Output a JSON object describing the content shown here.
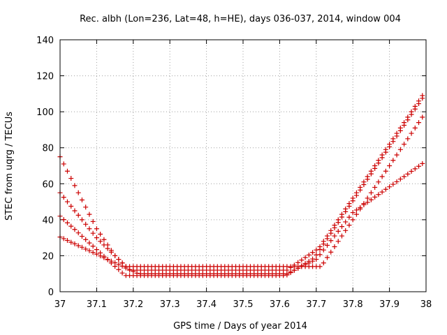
{
  "chart_data": {
    "type": "scatter",
    "title": "Rec. albh (Lon=236, Lat=48, h=HE), days 036-037, 2014, window 004",
    "xlabel": "GPS time / Days of year 2014",
    "ylabel": "STEC from uqrg / TECUs",
    "xlim": [
      37,
      38
    ],
    "ylim": [
      0,
      140
    ],
    "xticks": [
      "37",
      "37.1",
      "37.2",
      "37.3",
      "37.4",
      "37.5",
      "37.6",
      "37.7",
      "37.8",
      "37.9",
      "38"
    ],
    "yticks": [
      "0",
      "20",
      "40",
      "60",
      "80",
      "100",
      "120",
      "140"
    ],
    "grid": true,
    "marker": "plus",
    "color": "#cc0000",
    "series": [
      {
        "x": [
          37.0,
          37.01,
          37.02,
          37.03,
          37.04,
          37.05,
          37.06,
          37.07,
          37.08,
          37.09,
          37.1,
          37.11,
          37.12,
          37.13,
          37.14,
          37.15,
          37.16,
          37.17,
          37.18,
          37.19,
          37.2,
          37.21,
          37.22,
          37.23,
          37.24,
          37.25,
          37.26,
          37.27,
          37.28,
          37.29,
          37.3,
          37.31,
          37.32,
          37.33,
          37.34,
          37.35,
          37.36,
          37.37,
          37.38,
          37.39,
          37.4,
          37.41,
          37.42,
          37.43,
          37.44,
          37.45,
          37.46,
          37.47,
          37.48,
          37.49,
          37.5,
          37.51,
          37.52,
          37.53,
          37.54,
          37.55,
          37.56,
          37.57,
          37.58,
          37.59,
          37.6,
          37.61,
          37.62,
          37.63,
          37.64,
          37.65,
          37.66,
          37.67,
          37.68,
          37.69,
          37.7,
          37.71,
          37.72,
          37.73,
          37.74,
          37.75,
          37.76,
          37.77,
          37.78,
          37.79,
          37.8,
          37.81,
          37.82,
          37.83,
          37.84,
          37.85,
          37.86,
          37.87,
          37.88,
          37.89,
          37.9,
          37.91,
          37.92,
          37.93,
          37.94,
          37.95,
          37.96,
          37.97,
          37.98,
          37.99
        ],
        "y": [
          30.4,
          29.5,
          28.5,
          27.5,
          26.6,
          25.6,
          24.7,
          23.7,
          22.8,
          21.8,
          20.9,
          19.9,
          18.9,
          18.0,
          17.0,
          16.1,
          15.1,
          14.2,
          13.2,
          12.3,
          11.3,
          10.3,
          10.0,
          10.0,
          10.0,
          10.0,
          10.0,
          10.0,
          10.0,
          10.0,
          10.0,
          10.0,
          10.0,
          10.0,
          10.0,
          10.0,
          10.0,
          10.0,
          10.0,
          10.0,
          10.0,
          10.0,
          10.0,
          10.0,
          10.0,
          10.0,
          10.0,
          10.0,
          10.0,
          10.0,
          10.0,
          10.0,
          10.0,
          10.0,
          10.0,
          10.0,
          10.0,
          10.0,
          10.0,
          10.0,
          10.0,
          10.0,
          10.0,
          11.0,
          12.0,
          13.0,
          14.0,
          15.0,
          16.0,
          17.0,
          18.0,
          20.6,
          23.2,
          25.8,
          28.4,
          31.0,
          33.6,
          36.2,
          38.8,
          41.4,
          44.0,
          45.4,
          46.8,
          48.3,
          49.7,
          51.1,
          52.6,
          54.0,
          55.4,
          56.9,
          58.3,
          59.7,
          61.1,
          62.6,
          64.0,
          65.4,
          66.9,
          68.3,
          69.7,
          71.2
        ]
      },
      {
        "x": [
          37.0,
          37.01,
          37.02,
          37.03,
          37.04,
          37.05,
          37.06,
          37.07,
          37.08,
          37.09,
          37.1,
          37.11,
          37.12,
          37.13,
          37.14,
          37.15,
          37.16,
          37.17,
          37.18,
          37.19,
          37.2,
          37.21,
          37.22,
          37.23,
          37.24,
          37.25,
          37.26,
          37.27,
          37.28,
          37.29,
          37.3,
          37.31,
          37.32,
          37.33,
          37.34,
          37.35,
          37.36,
          37.37,
          37.38,
          37.39,
          37.4,
          37.41,
          37.42,
          37.43,
          37.44,
          37.45,
          37.46,
          37.47,
          37.48,
          37.49,
          37.5,
          37.51,
          37.52,
          37.53,
          37.54,
          37.55,
          37.56,
          37.57,
          37.58,
          37.59,
          37.6,
          37.61,
          37.62,
          37.63,
          37.64,
          37.65,
          37.66,
          37.67,
          37.68,
          37.69,
          37.7,
          37.71,
          37.72,
          37.73,
          37.74,
          37.75,
          37.76,
          37.77,
          37.78,
          37.79,
          37.8,
          37.81,
          37.82,
          37.83,
          37.84,
          37.85,
          37.86,
          37.87,
          37.88,
          37.89,
          37.9,
          37.91,
          37.92,
          37.93,
          37.94,
          37.95,
          37.96,
          37.97,
          37.98,
          37.99
        ],
        "y": [
          42.0,
          40.1,
          38.3,
          36.4,
          34.6,
          32.7,
          30.8,
          29.0,
          27.1,
          25.3,
          23.4,
          21.6,
          19.7,
          17.8,
          16.0,
          14.1,
          12.3,
          10.4,
          9.0,
          9.0,
          9.0,
          9.0,
          9.0,
          9.0,
          9.0,
          9.0,
          9.0,
          9.0,
          9.0,
          9.0,
          9.0,
          9.0,
          9.0,
          9.0,
          9.0,
          9.0,
          9.0,
          9.0,
          9.0,
          9.0,
          9.0,
          9.0,
          9.0,
          9.0,
          9.0,
          9.0,
          9.0,
          9.0,
          9.0,
          9.0,
          9.0,
          9.0,
          9.0,
          9.0,
          9.0,
          9.0,
          9.0,
          9.0,
          9.0,
          9.0,
          9.0,
          9.0,
          9.3,
          10.6,
          11.9,
          13.1,
          14.4,
          15.7,
          16.9,
          18.2,
          20.5,
          23.5,
          26.5,
          29.5,
          32.5,
          35.5,
          38.5,
          41.5,
          44.5,
          47.5,
          50.5,
          53.5,
          56.5,
          59.5,
          62.5,
          65.5,
          68.5,
          71.5,
          74.5,
          77.5,
          80.5,
          83.5,
          86.5,
          89.5,
          92.5,
          95.5,
          98.5,
          101.5,
          104.5,
          107.5
        ]
      },
      {
        "x": [
          37.0,
          37.01,
          37.02,
          37.03,
          37.04,
          37.05,
          37.06,
          37.07,
          37.08,
          37.09,
          37.1,
          37.11,
          37.12,
          37.13,
          37.14,
          37.15,
          37.16,
          37.17,
          37.18,
          37.19,
          37.2,
          37.21,
          37.22,
          37.23,
          37.24,
          37.25,
          37.26,
          37.27,
          37.28,
          37.29,
          37.3,
          37.31,
          37.32,
          37.33,
          37.34,
          37.35,
          37.36,
          37.37,
          37.38,
          37.39,
          37.4,
          37.41,
          37.42,
          37.43,
          37.44,
          37.45,
          37.46,
          37.47,
          37.48,
          37.49,
          37.5,
          37.51,
          37.52,
          37.53,
          37.54,
          37.55,
          37.56,
          37.57,
          37.58,
          37.59,
          37.6,
          37.61,
          37.62,
          37.63,
          37.64,
          37.65,
          37.66,
          37.67,
          37.68,
          37.69,
          37.7,
          37.71,
          37.72,
          37.73,
          37.74,
          37.75,
          37.76,
          37.77,
          37.78,
          37.79,
          37.8,
          37.81,
          37.82,
          37.83,
          37.84,
          37.85,
          37.86,
          37.87,
          37.88,
          37.89,
          37.9,
          37.91,
          37.92,
          37.93,
          37.94,
          37.95,
          37.96,
          37.97,
          37.98,
          37.99
        ],
        "y": [
          55.0,
          52.5,
          50.0,
          47.5,
          45.0,
          42.5,
          40.0,
          37.5,
          35.0,
          32.5,
          30.0,
          28.0,
          26.0,
          24.0,
          22.0,
          20.0,
          18.0,
          16.0,
          14.0,
          12.0,
          12.0,
          12.0,
          12.0,
          12.0,
          12.0,
          12.0,
          12.0,
          12.0,
          12.0,
          12.0,
          12.0,
          12.0,
          12.0,
          12.0,
          12.0,
          12.0,
          12.0,
          12.0,
          12.0,
          12.0,
          12.0,
          12.0,
          12.0,
          12.0,
          12.0,
          12.0,
          12.0,
          12.0,
          12.0,
          12.0,
          12.0,
          12.0,
          12.0,
          12.0,
          12.0,
          12.0,
          12.0,
          12.0,
          12.0,
          12.0,
          12.0,
          12.0,
          12.0,
          13.4,
          14.8,
          16.2,
          17.6,
          19.0,
          20.4,
          21.8,
          23.2,
          25.0,
          28.0,
          31.0,
          34.0,
          37.0,
          40.0,
          43.0,
          46.0,
          49.0,
          52.0,
          55.0,
          58.0,
          61.0,
          64.0,
          67.0,
          70.0,
          73.0,
          76.0,
          79.0,
          82.0,
          85.0,
          88.0,
          91.0,
          94.0,
          97.0,
          100.0,
          103.0,
          106.0,
          109.0
        ]
      },
      {
        "x": [
          37.0,
          37.01,
          37.02,
          37.03,
          37.04,
          37.05,
          37.06,
          37.07,
          37.08,
          37.09,
          37.1,
          37.11,
          37.12,
          37.13,
          37.14,
          37.15,
          37.16,
          37.17,
          37.18,
          37.19,
          37.2,
          37.21,
          37.22,
          37.23,
          37.24,
          37.25,
          37.26,
          37.27,
          37.28,
          37.29,
          37.3,
          37.31,
          37.32,
          37.33,
          37.34,
          37.35,
          37.36,
          37.37,
          37.38,
          37.39,
          37.4,
          37.41,
          37.42,
          37.43,
          37.44,
          37.45,
          37.46,
          37.47,
          37.48,
          37.49,
          37.5,
          37.51,
          37.52,
          37.53,
          37.54,
          37.55,
          37.56,
          37.57,
          37.58,
          37.59,
          37.6,
          37.61,
          37.62,
          37.63,
          37.64,
          37.65,
          37.66,
          37.67,
          37.68,
          37.69,
          37.7,
          37.71,
          37.72,
          37.73,
          37.74,
          37.75,
          37.76,
          37.77,
          37.78,
          37.79,
          37.8,
          37.81,
          37.82,
          37.83,
          37.84,
          37.85,
          37.86,
          37.87,
          37.88,
          37.89,
          37.9,
          37.91,
          37.92,
          37.93,
          37.94,
          37.95,
          37.96,
          37.97,
          37.98,
          37.99
        ],
        "y": [
          75.0,
          71.0,
          67.0,
          63.0,
          59.0,
          55.0,
          51.0,
          47.0,
          43.0,
          39.0,
          35.0,
          32.0,
          29.0,
          26.0,
          23.0,
          20.0,
          18.0,
          16.0,
          14.0,
          14.0,
          14.0,
          14.0,
          14.0,
          14.0,
          14.0,
          14.0,
          14.0,
          14.0,
          14.0,
          14.0,
          14.0,
          14.0,
          14.0,
          14.0,
          14.0,
          14.0,
          14.0,
          14.0,
          14.0,
          14.0,
          14.0,
          14.0,
          14.0,
          14.0,
          14.0,
          14.0,
          14.0,
          14.0,
          14.0,
          14.0,
          14.0,
          14.0,
          14.0,
          14.0,
          14.0,
          14.0,
          14.0,
          14.0,
          14.0,
          14.0,
          14.0,
          14.0,
          14.0,
          14.0,
          14.0,
          14.0,
          14.0,
          14.0,
          14.0,
          14.0,
          14.0,
          14.0,
          16.0,
          19.0,
          22.0,
          25.0,
          28.0,
          31.0,
          34.0,
          37.0,
          40.0,
          43.0,
          46.0,
          49.0,
          52.0,
          55.0,
          58.0,
          61.0,
          64.0,
          67.0,
          70.0,
          73.0,
          76.0,
          79.0,
          82.0,
          85.0,
          88.0,
          91.0,
          94.0,
          97.0
        ]
      }
    ]
  }
}
